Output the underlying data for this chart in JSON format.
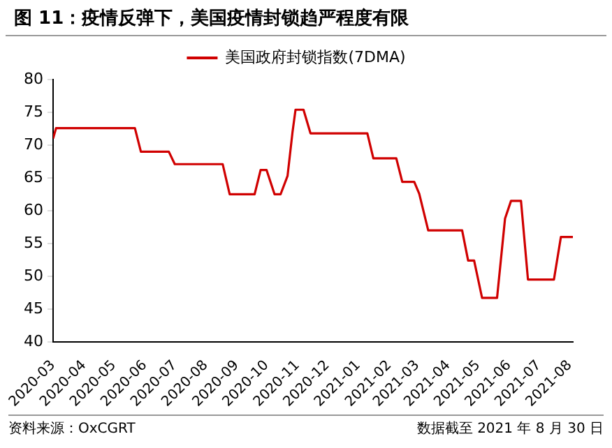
{
  "chart_data": {
    "type": "line",
    "title": "图 11：疫情反弹下，美国疫情封锁趋严程度有限",
    "x": [
      "2020-03-01",
      "2020-03-04",
      "2020-05-22",
      "2020-05-28",
      "2020-06-25",
      "2020-07-01",
      "2020-08-18",
      "2020-08-25",
      "2020-09-19",
      "2020-09-25",
      "2020-10-01",
      "2020-10-09",
      "2020-10-15",
      "2020-10-22",
      "2020-10-27",
      "2020-10-30",
      "2020-11-07",
      "2020-11-14",
      "2021-01-10",
      "2021-01-16",
      "2021-02-08",
      "2021-02-14",
      "2021-02-26",
      "2021-03-03",
      "2021-03-12",
      "2021-04-15",
      "2021-04-21",
      "2021-04-27",
      "2021-05-05",
      "2021-05-20",
      "2021-05-28",
      "2021-06-03",
      "2021-06-13",
      "2021-06-20",
      "2021-07-16",
      "2021-07-23",
      "2021-08-04"
    ],
    "series": [
      {
        "name": "美国政府封锁指数(7DMA)",
        "color": "#d00000",
        "values": [
          71,
          72.6,
          72.6,
          69,
          69,
          67.1,
          67.1,
          62.5,
          62.5,
          66.2,
          66.2,
          62.5,
          62.5,
          65.3,
          72,
          75.4,
          75.4,
          71.8,
          71.8,
          68,
          68,
          64.4,
          64.4,
          62.6,
          57,
          57,
          52.4,
          52.4,
          46.7,
          46.7,
          58.8,
          61.5,
          61.5,
          49.5,
          49.5,
          56,
          56
        ]
      }
    ],
    "xlim": [
      "2020-03-01",
      "2021-08-04"
    ],
    "xticks": [
      "2020-03",
      "2020-04",
      "2020-05",
      "2020-06",
      "2020-07",
      "2020-08",
      "2020-09",
      "2020-10",
      "2020-11",
      "2020-12",
      "2021-01",
      "2021-02",
      "2021-03",
      "2021-04",
      "2021-05",
      "2021-06",
      "2021-07",
      "2021-08"
    ],
    "ylim": [
      40,
      80
    ],
    "yticks": [
      40,
      45,
      50,
      55,
      60,
      65,
      70,
      75,
      80
    ],
    "grid": false,
    "legend": "top",
    "marker": "none",
    "line_style": "solid",
    "annotations": [
      "资料来源：OxCGRT",
      "数据截至 2021 年 8 月 30 日"
    ]
  }
}
